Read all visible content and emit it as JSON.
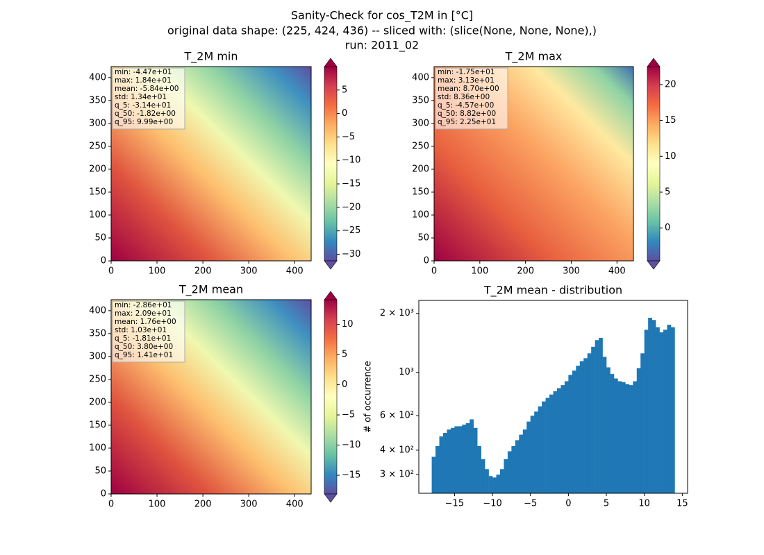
{
  "title": [
    "Sanity-Check for cos_T2M in [°C]",
    "original data shape: (225, 424, 436) -- sliced with: (slice(None, None, None),)",
    "run: 2011_02"
  ],
  "chart_data": [
    {
      "type": "heatmap",
      "title": "T_2M min",
      "xlim": [
        0,
        436
      ],
      "xticks": [
        0,
        100,
        200,
        300,
        400
      ],
      "ylim": [
        0,
        424
      ],
      "yticks": [
        0,
        50,
        100,
        150,
        200,
        250,
        300,
        350,
        400
      ],
      "stats": [
        "min: -4.47e+01",
        "max: 1.84e+01",
        "mean: -5.84e+00",
        "std: 1.34e+01",
        "q_5: -3.14e+01",
        "q_50: -1.82e+00",
        "q_95: 9.99e+00"
      ],
      "clim": [
        -31.4,
        9.99
      ],
      "cticks": [
        {
          "value": -30,
          "label": "−30"
        },
        {
          "value": -25,
          "label": "−25"
        },
        {
          "value": -20,
          "label": "−20"
        },
        {
          "value": -15,
          "label": "−15"
        },
        {
          "value": -10,
          "label": "−10"
        },
        {
          "value": -5,
          "label": "−5"
        },
        0,
        5
      ]
    },
    {
      "type": "heatmap",
      "title": "T_2M max",
      "xlim": [
        0,
        436
      ],
      "xticks": [
        0,
        100,
        200,
        300,
        400
      ],
      "ylim": [
        0,
        424
      ],
      "yticks": [
        0,
        50,
        100,
        150,
        200,
        250,
        300,
        350,
        400
      ],
      "stats": [
        "min: -1.75e+01",
        "max: 3.13e+01",
        "mean: 8.70e+00",
        "std: 8.36e+00",
        "q_5: -4.57e+00",
        "q_50: 8.82e+00",
        "q_95: 2.25e+01"
      ],
      "clim": [
        -4.57,
        22.5
      ],
      "cticks": [
        0,
        5,
        10,
        15,
        20
      ]
    },
    {
      "type": "heatmap",
      "title": "T_2M mean",
      "xlim": [
        0,
        436
      ],
      "xticks": [
        0,
        100,
        200,
        300,
        400
      ],
      "ylim": [
        0,
        424
      ],
      "yticks": [
        0,
        50,
        100,
        150,
        200,
        250,
        300,
        350,
        400
      ],
      "stats": [
        "min: -2.86e+01",
        "max: 2.09e+01",
        "mean: 1.76e+00",
        "std: 1.03e+01",
        "q_5: -1.81e+01",
        "q_50: 3.80e+00",
        "q_95: 1.41e+01"
      ],
      "clim": [
        -18.1,
        14.1
      ],
      "cticks": [
        {
          "value": -15,
          "label": "−15"
        },
        {
          "value": -10,
          "label": "−10"
        },
        {
          "value": -5,
          "label": "−5"
        },
        0,
        5,
        10
      ]
    },
    {
      "type": "histogram",
      "title": "T_2M mean - distribution",
      "ylabel": "# of occurrence",
      "color": "#1f77b4",
      "log_y": true,
      "bins": [
        -18,
        -17.5,
        -17,
        -16.5,
        -16,
        -15.5,
        -15,
        -14.5,
        -14,
        -13.5,
        -13,
        -12.5,
        -12,
        -11.5,
        -11,
        -10.5,
        -10,
        -9.5,
        -9,
        -8.5,
        -8,
        -7.5,
        -7,
        -6.5,
        -6,
        -5.5,
        -5,
        -4.5,
        -4,
        -3.5,
        -3,
        -2.5,
        -2,
        -1.5,
        -1,
        -0.5,
        0,
        0.5,
        1,
        1.5,
        2,
        2.5,
        3,
        3.5,
        4,
        4.5,
        5,
        5.5,
        6,
        6.5,
        7,
        7.5,
        8,
        8.5,
        9,
        9.5,
        10,
        10.5,
        11,
        11.5,
        12,
        12.5,
        13,
        13.5,
        14
      ],
      "values": [
        370,
        420,
        470,
        490,
        510,
        520,
        530,
        530,
        540,
        550,
        575,
        520,
        420,
        360,
        320,
        295,
        290,
        300,
        320,
        360,
        395,
        420,
        450,
        480,
        510,
        560,
        600,
        630,
        670,
        710,
        740,
        770,
        800,
        830,
        860,
        900,
        970,
        1020,
        1080,
        1140,
        1180,
        1250,
        1350,
        1460,
        1500,
        1200,
        1060,
        980,
        930,
        900,
        890,
        870,
        860,
        900,
        1050,
        1250,
        1650,
        1900,
        1850,
        1700,
        1600,
        1650,
        1750,
        1700
      ],
      "xlim": [
        -19.7,
        15.7
      ],
      "xticks": [
        {
          "value": -15,
          "label": "−15"
        },
        {
          "value": -10,
          "label": "−10"
        },
        {
          "value": -5,
          "label": "−5"
        },
        0,
        5,
        10,
        15
      ],
      "ylim": [
        241,
        2330
      ],
      "yticks": [
        {
          "value": 300,
          "label": "3 × 10²"
        },
        {
          "value": 400,
          "label": "4 × 10²"
        },
        {
          "value": 600,
          "label": "6 × 10²"
        },
        {
          "value": 1000,
          "label": "10³"
        },
        {
          "value": 2000,
          "label": "2 × 10³"
        }
      ]
    }
  ]
}
